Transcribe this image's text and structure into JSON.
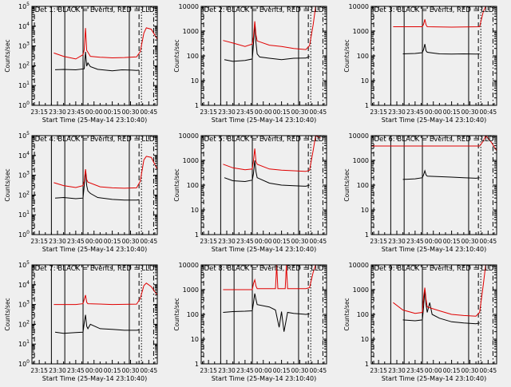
{
  "chart_data": [
    {
      "type": "line",
      "panel": "det-1",
      "title": "Det 1: BLACK = Events, RED = LLD",
      "xlabel": "Start Time (25-May-14 23:10:40)",
      "ylabel": "Counts/sec",
      "y_scale": "log",
      "ylim": [
        1,
        100000
      ],
      "y_ticks": [
        "10^0",
        "10^1",
        "10^2",
        "10^3",
        "10^4",
        "10^5"
      ],
      "x_tick_labels": [
        "23:15",
        "23:30",
        "23:45",
        "00:00",
        "00:15",
        "00:30",
        "00:45"
      ],
      "x_range_min": [
        -6,
        97
      ],
      "events": [
        [
          13,
          63
        ],
        [
          20,
          65
        ],
        [
          30,
          62
        ],
        [
          37,
          70
        ],
        [
          38,
          500
        ],
        [
          39,
          95
        ],
        [
          40,
          140
        ],
        [
          42,
          90
        ],
        [
          48,
          66
        ],
        [
          60,
          55
        ],
        [
          68,
          62
        ],
        [
          76,
          60
        ],
        [
          80,
          58
        ],
        [
          82,
          60
        ]
      ],
      "lld": [
        [
          12,
          440
        ],
        [
          20,
          300
        ],
        [
          30,
          220
        ],
        [
          36,
          360
        ],
        [
          37,
          650
        ],
        [
          38,
          8000
        ],
        [
          39,
          600
        ],
        [
          40,
          480
        ],
        [
          42,
          300
        ],
        [
          50,
          270
        ],
        [
          60,
          250
        ],
        [
          70,
          260
        ],
        [
          80,
          280
        ],
        [
          83,
          520
        ],
        [
          86,
          4500
        ],
        [
          88,
          8200
        ],
        [
          92,
          7000
        ],
        [
          97,
          2200
        ]
      ]
    },
    {
      "type": "line",
      "panel": "det-2",
      "title": "Det 2: BLACK = Events, RED = LLD",
      "xlabel": "Start Time (25-May-14 23:10:40)",
      "ylabel": "Counts/sec",
      "y_scale": "log",
      "ylim": [
        1,
        10000
      ],
      "y_ticks": [
        "1",
        "10",
        "100",
        "1000",
        "10000"
      ],
      "x_tick_labels": [
        "23:15",
        "23:30",
        "23:45",
        "00:00",
        "00:15",
        "00:30",
        "00:45"
      ],
      "x_range_min": [
        -6,
        97
      ],
      "events": [
        [
          13,
          70
        ],
        [
          20,
          60
        ],
        [
          30,
          65
        ],
        [
          36,
          75
        ],
        [
          37,
          320
        ],
        [
          38,
          2000
        ],
        [
          39,
          340
        ],
        [
          40,
          120
        ],
        [
          42,
          90
        ],
        [
          50,
          80
        ],
        [
          60,
          70
        ],
        [
          70,
          80
        ],
        [
          80,
          82
        ],
        [
          83,
          95
        ]
      ],
      "lld": [
        [
          12,
          420
        ],
        [
          20,
          330
        ],
        [
          30,
          240
        ],
        [
          36,
          300
        ],
        [
          37,
          600
        ],
        [
          38,
          2500
        ],
        [
          39,
          700
        ],
        [
          40,
          400
        ],
        [
          50,
          270
        ],
        [
          60,
          240
        ],
        [
          70,
          200
        ],
        [
          80,
          180
        ],
        [
          83,
          260
        ],
        [
          86,
          1800
        ],
        [
          88,
          10000
        ]
      ]
    },
    {
      "type": "line",
      "panel": "det-3",
      "title": "Det 3: BLACK = Events, RED = LLD",
      "xlabel": "Start Time (25-May-14 23:10:40)",
      "ylabel": "Counts/sec",
      "y_scale": "log",
      "ylim": [
        1,
        10000
      ],
      "y_ticks": [
        "1",
        "10",
        "100",
        "1000",
        "10000"
      ],
      "x_tick_labels": [
        "23:15",
        "23:30",
        "23:45",
        "00:00",
        "00:15",
        "00:30",
        "00:45"
      ],
      "x_range_min": [
        -6,
        97
      ],
      "events": [
        [
          20,
          120
        ],
        [
          30,
          125
        ],
        [
          36,
          135
        ],
        [
          37,
          180
        ],
        [
          38,
          300
        ],
        [
          39,
          160
        ],
        [
          40,
          140
        ],
        [
          50,
          120
        ],
        [
          60,
          118
        ],
        [
          70,
          120
        ],
        [
          80,
          118
        ],
        [
          83,
          120
        ]
      ],
      "lld": [
        [
          12,
          1500
        ],
        [
          30,
          1500
        ],
        [
          36,
          1500
        ],
        [
          37,
          1900
        ],
        [
          38,
          3000
        ],
        [
          39,
          1800
        ],
        [
          40,
          1500
        ],
        [
          60,
          1450
        ],
        [
          83,
          1500
        ],
        [
          86,
          6000
        ],
        [
          88,
          10000
        ]
      ]
    },
    {
      "type": "line",
      "panel": "det-4",
      "title": "Det 4: BLACK = Events, RED = LLD",
      "xlabel": "Start Time (25-May-14 23:10:40)",
      "ylabel": "Counts/sec",
      "y_scale": "log",
      "ylim": [
        1,
        100000
      ],
      "y_ticks": [
        "10^0",
        "10^1",
        "10^2",
        "10^3",
        "10^4",
        "10^5"
      ],
      "x_tick_labels": [
        "23:15",
        "23:30",
        "23:45",
        "00:00",
        "00:15",
        "00:30",
        "00:45"
      ],
      "x_range_min": [
        -6,
        97
      ],
      "events": [
        [
          13,
          70
        ],
        [
          20,
          75
        ],
        [
          30,
          65
        ],
        [
          36,
          70
        ],
        [
          37,
          300
        ],
        [
          38,
          1800
        ],
        [
          39,
          300
        ],
        [
          40,
          160
        ],
        [
          42,
          120
        ],
        [
          48,
          75
        ],
        [
          60,
          60
        ],
        [
          70,
          55
        ],
        [
          80,
          55
        ],
        [
          82,
          58
        ]
      ],
      "lld": [
        [
          12,
          420
        ],
        [
          20,
          300
        ],
        [
          30,
          240
        ],
        [
          36,
          300
        ],
        [
          37,
          500
        ],
        [
          38,
          2000
        ],
        [
          39,
          600
        ],
        [
          40,
          450
        ],
        [
          50,
          260
        ],
        [
          60,
          230
        ],
        [
          70,
          220
        ],
        [
          80,
          230
        ],
        [
          83,
          500
        ],
        [
          86,
          6000
        ],
        [
          88,
          9000
        ],
        [
          92,
          8000
        ],
        [
          97,
          2000
        ]
      ]
    },
    {
      "type": "line",
      "panel": "det-5",
      "title": "Det 5: BLACK = Events, RED = LLD",
      "xlabel": "Start Time (25-May-14 23:10:40)",
      "ylabel": "Counts/sec",
      "y_scale": "log",
      "ylim": [
        1,
        10000
      ],
      "y_ticks": [
        "1",
        "10",
        "100",
        "1000",
        "10000"
      ],
      "x_tick_labels": [
        "23:15",
        "23:30",
        "23:45",
        "00:00",
        "00:15",
        "00:30",
        "00:45"
      ],
      "x_range_min": [
        -6,
        97
      ],
      "events": [
        [
          13,
          200
        ],
        [
          20,
          150
        ],
        [
          30,
          140
        ],
        [
          36,
          160
        ],
        [
          37,
          300
        ],
        [
          38,
          1000
        ],
        [
          39,
          350
        ],
        [
          40,
          200
        ],
        [
          50,
          120
        ],
        [
          60,
          100
        ],
        [
          70,
          95
        ],
        [
          80,
          90
        ],
        [
          83,
          100
        ]
      ],
      "lld": [
        [
          12,
          700
        ],
        [
          20,
          500
        ],
        [
          30,
          420
        ],
        [
          36,
          450
        ],
        [
          37,
          1000
        ],
        [
          38,
          3000
        ],
        [
          39,
          900
        ],
        [
          40,
          700
        ],
        [
          50,
          450
        ],
        [
          60,
          400
        ],
        [
          70,
          380
        ],
        [
          80,
          360
        ],
        [
          83,
          400
        ],
        [
          86,
          2500
        ],
        [
          88,
          10000
        ],
        [
          92,
          8000
        ]
      ]
    },
    {
      "type": "line",
      "panel": "det-6",
      "title": "Det 6: BLACK = Events, RED = LLD",
      "xlabel": "Start Time (25-May-14 23:10:40)",
      "ylabel": "Counts/sec",
      "y_scale": "log",
      "ylim": [
        1,
        10000
      ],
      "y_ticks": [
        "1",
        "10",
        "100",
        "1000",
        "10000"
      ],
      "x_tick_labels": [
        "23:15",
        "23:30",
        "23:45",
        "00:00",
        "00:15",
        "00:30",
        "00:45"
      ],
      "x_range_min": [
        -6,
        97
      ],
      "events": [
        [
          20,
          170
        ],
        [
          30,
          180
        ],
        [
          36,
          200
        ],
        [
          37,
          260
        ],
        [
          38,
          380
        ],
        [
          39,
          260
        ],
        [
          40,
          230
        ],
        [
          50,
          220
        ],
        [
          60,
          210
        ],
        [
          70,
          200
        ],
        [
          80,
          190
        ],
        [
          83,
          200
        ]
      ],
      "lld": [
        [
          -6,
          3800
        ],
        [
          83,
          3800
        ],
        [
          86,
          6000
        ],
        [
          88,
          10000
        ],
        [
          92,
          6000
        ],
        [
          97,
          2500
        ]
      ]
    },
    {
      "type": "line",
      "panel": "det-7",
      "title": "Det 7: BLACK = Events, RED = LLD",
      "xlabel": "Start Time (25-May-14 23:10:40)",
      "ylabel": "Counts/sec",
      "y_scale": "log",
      "ylim": [
        1,
        100000
      ],
      "y_ticks": [
        "10^0",
        "10^1",
        "10^2",
        "10^3",
        "10^4",
        "10^5"
      ],
      "x_tick_labels": [
        "23:15",
        "23:30",
        "23:45",
        "00:00",
        "00:15",
        "00:30",
        "00:45"
      ],
      "x_range_min": [
        -6,
        97
      ],
      "events": [
        [
          13,
          40
        ],
        [
          20,
          35
        ],
        [
          30,
          38
        ],
        [
          36,
          40
        ],
        [
          37,
          120
        ],
        [
          38,
          300
        ],
        [
          39,
          80
        ],
        [
          40,
          60
        ],
        [
          42,
          100
        ],
        [
          50,
          60
        ],
        [
          60,
          55
        ],
        [
          70,
          50
        ],
        [
          80,
          50
        ],
        [
          82,
          52
        ]
      ],
      "lld": [
        [
          12,
          1000
        ],
        [
          30,
          1000
        ],
        [
          36,
          1100
        ],
        [
          37,
          1800
        ],
        [
          38,
          3000
        ],
        [
          39,
          1300
        ],
        [
          40,
          1100
        ],
        [
          60,
          1000
        ],
        [
          80,
          1050
        ],
        [
          83,
          2000
        ],
        [
          86,
          9000
        ],
        [
          88,
          12000
        ],
        [
          92,
          8000
        ],
        [
          97,
          3000
        ]
      ]
    },
    {
      "type": "line",
      "panel": "det-8",
      "title": "Det 8: BLACK = Events, RED = LLD",
      "xlabel": "Start Time (25-May-14 23:10:40)",
      "ylabel": "Counts/sec",
      "y_scale": "log",
      "ylim": [
        1,
        10000
      ],
      "y_ticks": [
        "1",
        "10",
        "100",
        "1000",
        "10000"
      ],
      "x_tick_labels": [
        "23:15",
        "23:30",
        "23:45",
        "00:00",
        "00:15",
        "00:30",
        "00:45"
      ],
      "x_range_min": [
        -6,
        97
      ],
      "events": [
        [
          12,
          120
        ],
        [
          20,
          130
        ],
        [
          30,
          135
        ],
        [
          36,
          140
        ],
        [
          37,
          300
        ],
        [
          38,
          700
        ],
        [
          39,
          400
        ],
        [
          40,
          250
        ],
        [
          50,
          200
        ],
        [
          55,
          150
        ],
        [
          58,
          30
        ],
        [
          60,
          130
        ],
        [
          62,
          20
        ],
        [
          65,
          120
        ],
        [
          70,
          110
        ],
        [
          80,
          100
        ],
        [
          83,
          105
        ]
      ],
      "lld": [
        [
          12,
          1000
        ],
        [
          20,
          1000
        ],
        [
          30,
          1000
        ],
        [
          36,
          1000
        ],
        [
          37,
          1800
        ],
        [
          38,
          2500
        ],
        [
          39,
          1400
        ],
        [
          40,
          1100
        ],
        [
          55,
          1100
        ],
        [
          56,
          10000
        ],
        [
          57,
          1100
        ],
        [
          63,
          1100
        ],
        [
          64,
          10000
        ],
        [
          65,
          1100
        ],
        [
          80,
          1100
        ],
        [
          83,
          1200
        ],
        [
          86,
          5000
        ],
        [
          88,
          10000
        ]
      ]
    },
    {
      "type": "line",
      "panel": "det-9",
      "title": "Det 9: BLACK = Events, RED = LLD",
      "xlabel": "Start Time (25-May-14 23:10:40)",
      "ylabel": "Counts/sec",
      "y_scale": "log",
      "ylim": [
        1,
        10000
      ],
      "y_ticks": [
        "1",
        "10",
        "100",
        "1000",
        "10000"
      ],
      "x_tick_labels": [
        "23:15",
        "23:30",
        "23:45",
        "00:00",
        "00:15",
        "00:30",
        "00:45"
      ],
      "x_range_min": [
        -6,
        97
      ],
      "events": [
        [
          20,
          60
        ],
        [
          30,
          55
        ],
        [
          36,
          60
        ],
        [
          37,
          200
        ],
        [
          38,
          1000
        ],
        [
          39,
          250
        ],
        [
          40,
          120
        ],
        [
          42,
          300
        ],
        [
          44,
          100
        ],
        [
          50,
          70
        ],
        [
          60,
          50
        ],
        [
          70,
          45
        ],
        [
          80,
          42
        ],
        [
          83,
          45
        ]
      ],
      "lld": [
        [
          12,
          300
        ],
        [
          20,
          150
        ],
        [
          30,
          110
        ],
        [
          36,
          120
        ],
        [
          37,
          500
        ],
        [
          38,
          1200
        ],
        [
          39,
          400
        ],
        [
          40,
          200
        ],
        [
          50,
          140
        ],
        [
          60,
          100
        ],
        [
          70,
          90
        ],
        [
          80,
          85
        ],
        [
          83,
          120
        ],
        [
          86,
          1500
        ],
        [
          88,
          10000
        ]
      ]
    }
  ],
  "vlines": {
    "dashed": [
      -4,
      82
    ],
    "solid": [
      10,
      21,
      36,
      74
    ],
    "dotted": [
      84
    ],
    "dashdot": [
      94
    ]
  },
  "colors": {
    "events": "#000000",
    "lld": "#e00000",
    "background": "#efefef"
  }
}
